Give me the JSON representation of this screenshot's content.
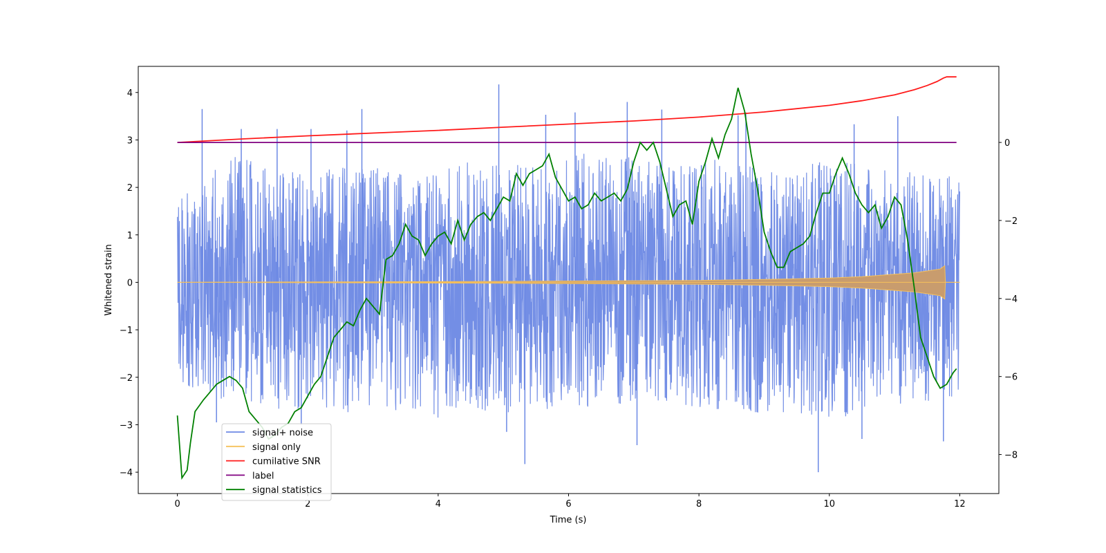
{
  "chart_data": {
    "type": "line",
    "xlabel": "Time (s)",
    "ylabel": "Whitened strain",
    "xlim": [
      -0.6,
      12.6
    ],
    "ylim": [
      -4.45,
      4.55
    ],
    "y2lim": [
      -9.0,
      1.95
    ],
    "x_ticks": [
      0,
      2,
      4,
      6,
      8,
      10,
      12
    ],
    "x_tick_labels": [
      "0",
      "2",
      "4",
      "6",
      "8",
      "10",
      "12"
    ],
    "y_ticks": [
      4,
      3,
      2,
      1,
      0,
      -1,
      -2,
      -3,
      -4
    ],
    "y_tick_labels": [
      "4",
      "3",
      "2",
      "1",
      "0",
      "−1",
      "−2",
      "−3",
      "−4"
    ],
    "y2_ticks": [
      0,
      -2,
      -4,
      -6,
      -8
    ],
    "y2_tick_labels": [
      "0",
      "−2",
      "−4",
      "−6",
      "−8"
    ],
    "legend_position": "lower-left",
    "series": [
      {
        "name": "signal+ noise",
        "axis": "left",
        "color": "#6b88e4",
        "description": "dense noisy strain around 0 from t=0 to t=12",
        "band_min": [
          -2.1,
          -2.6,
          -2.7,
          -2.8,
          -2.9,
          -2.8,
          -2.7,
          -2.6,
          -2.5,
          -2.7,
          -2.8,
          -2.9,
          -2.6,
          -2.4
        ],
        "band_max": [
          1.9,
          2.7,
          2.3,
          2.5,
          2.2,
          2.6,
          2.5,
          2.8,
          2.5,
          2.6,
          2.4,
          2.6,
          2.4,
          2.2
        ],
        "spikes": [
          [
            0.38,
            3.65
          ],
          [
            0.98,
            3.23
          ],
          [
            1.53,
            3.23
          ],
          [
            2.05,
            3.23
          ],
          [
            2.6,
            3.2
          ],
          [
            2.83,
            3.65
          ],
          [
            4.93,
            4.17
          ],
          [
            5.65,
            3.53
          ],
          [
            6.1,
            3.58
          ],
          [
            6.9,
            3.8
          ],
          [
            7.43,
            3.64
          ],
          [
            8.6,
            3.52
          ],
          [
            8.72,
            3.58
          ],
          [
            10.38,
            3.33
          ],
          [
            11.05,
            3.5
          ],
          [
            5.33,
            -3.83
          ],
          [
            5.05,
            -3.15
          ],
          [
            7.05,
            -3.43
          ],
          [
            9.83,
            -4.0
          ],
          [
            10.5,
            -3.3
          ],
          [
            11.75,
            -3.35
          ],
          [
            0.6,
            -2.95
          ],
          [
            1.9,
            -3.0
          ]
        ]
      },
      {
        "name": "signal only",
        "axis": "left",
        "color": "#f6c15b",
        "envelope": [
          [
            0,
            0.0
          ],
          [
            5,
            0.02
          ],
          [
            8,
            0.04
          ],
          [
            9,
            0.06
          ],
          [
            10,
            0.09
          ],
          [
            10.5,
            0.12
          ],
          [
            11,
            0.17
          ],
          [
            11.3,
            0.2
          ],
          [
            11.5,
            0.24
          ],
          [
            11.7,
            0.28
          ],
          [
            11.77,
            0.35
          ],
          [
            11.78,
            0.0
          ],
          [
            12,
            0.0
          ]
        ]
      },
      {
        "name": "cumilative SNR",
        "axis": "right",
        "color": "#ff1a1a",
        "x": [
          0,
          1,
          2,
          3,
          4,
          5,
          6,
          7,
          8,
          9,
          10,
          10.5,
          11,
          11.3,
          11.5,
          11.65,
          11.75,
          11.8,
          11.9,
          11.95
        ],
        "values": [
          0.0,
          0.09,
          0.17,
          0.24,
          0.31,
          0.39,
          0.47,
          0.55,
          0.65,
          0.78,
          0.95,
          1.07,
          1.22,
          1.35,
          1.46,
          1.56,
          1.65,
          1.68,
          1.68,
          1.68
        ]
      },
      {
        "name": "label",
        "axis": "right",
        "color": "#800080",
        "x": [
          0,
          11.95
        ],
        "values": [
          0,
          0
        ]
      },
      {
        "name": "signal statistics",
        "axis": "right",
        "color": "#008000",
        "x": [
          0,
          0.07,
          0.15,
          0.2,
          0.27,
          0.4,
          0.5,
          0.6,
          0.7,
          0.8,
          0.9,
          1.0,
          1.1,
          1.2,
          1.3,
          1.4,
          1.5,
          1.6,
          1.7,
          1.8,
          1.9,
          2.0,
          2.1,
          2.2,
          2.3,
          2.4,
          2.5,
          2.6,
          2.7,
          2.8,
          2.9,
          3.0,
          3.1,
          3.2,
          3.3,
          3.4,
          3.5,
          3.6,
          3.7,
          3.8,
          3.9,
          4.0,
          4.1,
          4.2,
          4.3,
          4.4,
          4.5,
          4.6,
          4.7,
          4.8,
          4.9,
          5.0,
          5.1,
          5.2,
          5.3,
          5.4,
          5.5,
          5.6,
          5.7,
          5.8,
          5.9,
          6.0,
          6.1,
          6.2,
          6.3,
          6.4,
          6.5,
          6.6,
          6.7,
          6.8,
          6.9,
          7.0,
          7.1,
          7.2,
          7.3,
          7.4,
          7.5,
          7.6,
          7.7,
          7.8,
          7.9,
          8.0,
          8.1,
          8.2,
          8.3,
          8.4,
          8.5,
          8.6,
          8.7,
          8.8,
          8.9,
          9.0,
          9.1,
          9.2,
          9.3,
          9.4,
          9.5,
          9.6,
          9.7,
          9.8,
          9.9,
          10.0,
          10.1,
          10.2,
          10.3,
          10.4,
          10.5,
          10.6,
          10.7,
          10.8,
          10.9,
          11.0,
          11.1,
          11.2,
          11.3,
          11.4,
          11.5,
          11.6,
          11.7,
          11.8,
          11.9,
          11.95
        ],
        "values": [
          -7.0,
          -8.6,
          -8.4,
          -7.7,
          -6.9,
          -6.6,
          -6.4,
          -6.2,
          -6.1,
          -6.0,
          -6.1,
          -6.3,
          -6.9,
          -7.1,
          -7.3,
          -7.6,
          -7.5,
          -7.3,
          -7.2,
          -6.9,
          -6.8,
          -6.5,
          -6.2,
          -6.0,
          -5.5,
          -5.0,
          -4.8,
          -4.6,
          -4.7,
          -4.3,
          -4.0,
          -4.2,
          -4.4,
          -3.0,
          -2.9,
          -2.6,
          -2.1,
          -2.4,
          -2.5,
          -2.9,
          -2.6,
          -2.4,
          -2.3,
          -2.6,
          -2.0,
          -2.5,
          -2.1,
          -1.9,
          -1.8,
          -2.0,
          -1.7,
          -1.4,
          -1.5,
          -0.8,
          -1.1,
          -0.8,
          -0.7,
          -0.6,
          -0.3,
          -0.9,
          -1.2,
          -1.5,
          -1.4,
          -1.7,
          -1.6,
          -1.3,
          -1.5,
          -1.4,
          -1.3,
          -1.5,
          -1.2,
          -0.5,
          0.0,
          -0.2,
          0.0,
          -0.5,
          -1.2,
          -1.9,
          -1.6,
          -1.5,
          -2.1,
          -1.0,
          -0.5,
          0.1,
          -0.4,
          0.2,
          0.6,
          1.4,
          0.8,
          -0.3,
          -1.2,
          -2.3,
          -2.8,
          -3.2,
          -3.2,
          -2.8,
          -2.7,
          -2.6,
          -2.4,
          -1.8,
          -1.3,
          -1.3,
          -0.8,
          -0.4,
          -0.8,
          -1.3,
          -1.6,
          -1.8,
          -1.6,
          -2.2,
          -1.9,
          -1.4,
          -1.6,
          -2.5,
          -3.7,
          -5.0,
          -5.5,
          -6.0,
          -6.3,
          -6.2,
          -5.9,
          -5.8
        ]
      }
    ]
  }
}
